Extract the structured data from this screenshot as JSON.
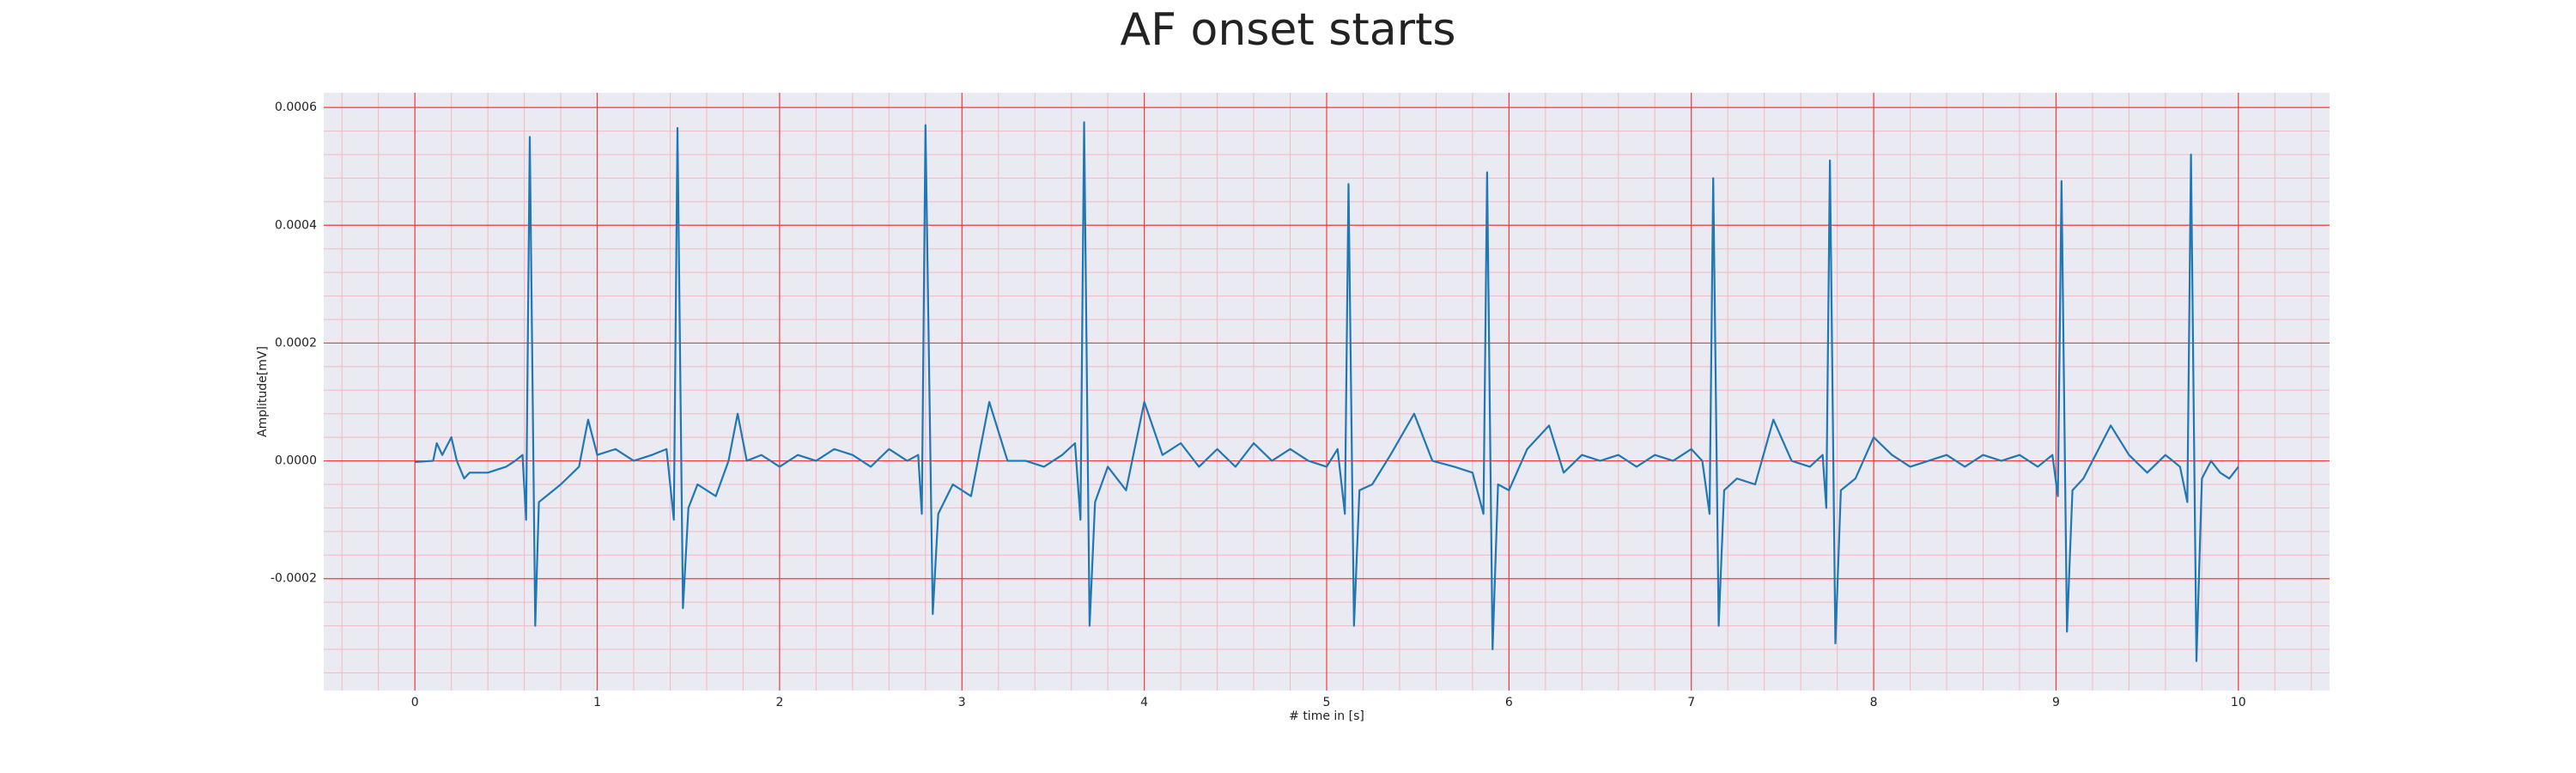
{
  "chart_data": {
    "type": "line",
    "title": "AF onset starts",
    "x_label": "# time in [s]",
    "y_label": "Amplitude[mV]",
    "xlim": [
      -0.5,
      10.5
    ],
    "ylim": [
      -0.00039,
      0.000625
    ],
    "xticks": [
      0,
      1,
      2,
      3,
      4,
      5,
      6,
      7,
      8,
      9,
      10
    ],
    "yticks": [
      -0.0002,
      {
        "value": 0,
        "label": "0.0000"
      },
      0.0002,
      0.0004,
      0.0006
    ],
    "grid": true,
    "minor_grid": true,
    "series": [
      {
        "color": "#1f77b4",
        "x": [
          0,
          0.1,
          0.12,
          0.15,
          0.2,
          0.23,
          0.27,
          0.3,
          0.4,
          0.5,
          0.55,
          0.59,
          0.61,
          0.63,
          0.66,
          0.68,
          0.72,
          0.8,
          0.9,
          0.95,
          1.0,
          1.1,
          1.2,
          1.3,
          1.38,
          1.42,
          1.44,
          1.47,
          1.5,
          1.55,
          1.65,
          1.72,
          1.77,
          1.82,
          1.9,
          2.0,
          2.1,
          2.2,
          2.3,
          2.4,
          2.5,
          2.6,
          2.7,
          2.76,
          2.78,
          2.8,
          2.84,
          2.87,
          2.95,
          3.05,
          3.15,
          3.25,
          3.35,
          3.45,
          3.55,
          3.62,
          3.65,
          3.67,
          3.7,
          3.73,
          3.8,
          3.9,
          4.0,
          4.1,
          4.2,
          4.3,
          4.4,
          4.5,
          4.6,
          4.7,
          4.8,
          4.9,
          5.0,
          5.06,
          5.1,
          5.12,
          5.15,
          5.18,
          5.25,
          5.35,
          5.48,
          5.58,
          5.7,
          5.8,
          5.86,
          5.88,
          5.91,
          5.94,
          6.0,
          6.1,
          6.22,
          6.3,
          6.4,
          6.5,
          6.6,
          6.7,
          6.8,
          6.9,
          7.0,
          7.06,
          7.1,
          7.12,
          7.15,
          7.18,
          7.25,
          7.35,
          7.45,
          7.55,
          7.65,
          7.72,
          7.74,
          7.76,
          7.79,
          7.82,
          7.9,
          8.0,
          8.1,
          8.2,
          8.3,
          8.4,
          8.5,
          8.6,
          8.7,
          8.8,
          8.9,
          8.98,
          9.01,
          9.03,
          9.06,
          9.09,
          9.15,
          9.3,
          9.4,
          9.5,
          9.6,
          9.68,
          9.72,
          9.74,
          9.77,
          9.8,
          9.85,
          9.9,
          9.95,
          10.0
        ],
        "values": [
          -2e-06,
          0.0,
          3e-05,
          1e-05,
          4e-05,
          0.0,
          -3e-05,
          -2e-05,
          -2e-05,
          -1e-05,
          0.0,
          1e-05,
          -0.0001,
          0.00055,
          -0.00028,
          -7e-05,
          -6e-05,
          -4e-05,
          -1e-05,
          7e-05,
          1e-05,
          2e-05,
          0.0,
          1e-05,
          2e-05,
          -0.0001,
          0.000565,
          -0.00025,
          -8e-05,
          -4e-05,
          -6e-05,
          0.0,
          8e-05,
          0.0,
          1e-05,
          -1e-05,
          1e-05,
          0.0,
          2e-05,
          1e-05,
          -1e-05,
          2e-05,
          0.0,
          1e-05,
          -9e-05,
          0.00057,
          -0.00026,
          -9e-05,
          -4e-05,
          -6e-05,
          0.0001,
          0.0,
          0.0,
          -1e-05,
          1e-05,
          3e-05,
          -0.0001,
          0.000575,
          -0.00028,
          -7e-05,
          -1e-05,
          -5e-05,
          0.0001,
          1e-05,
          3e-05,
          -1e-05,
          2e-05,
          -1e-05,
          3e-05,
          0.0,
          2e-05,
          0.0,
          -1e-05,
          2e-05,
          -9e-05,
          0.00047,
          -0.00028,
          -5e-05,
          -4e-05,
          1e-05,
          8e-05,
          0.0,
          -1e-05,
          -2e-05,
          -9e-05,
          0.00049,
          -0.00032,
          -4e-05,
          -5e-05,
          2e-05,
          6e-05,
          -2e-05,
          1e-05,
          0.0,
          1e-05,
          -1e-05,
          1e-05,
          0.0,
          2e-05,
          0.0,
          -9e-05,
          0.00048,
          -0.00028,
          -5e-05,
          -3e-05,
          -4e-05,
          7e-05,
          0.0,
          -1e-05,
          1e-05,
          -8e-05,
          0.00051,
          -0.00031,
          -5e-05,
          -3e-05,
          4e-05,
          1e-05,
          -1e-05,
          0.0,
          1e-05,
          -1e-05,
          1e-05,
          0.0,
          1e-05,
          -1e-05,
          1e-05,
          -6e-05,
          0.000475,
          -0.00029,
          -5e-05,
          -3e-05,
          6e-05,
          1e-05,
          -2e-05,
          1e-05,
          -1e-05,
          -7e-05,
          0.00052,
          -0.00034,
          -3e-05,
          0.0,
          -2e-05,
          -3e-05,
          -1e-05
        ]
      }
    ]
  }
}
